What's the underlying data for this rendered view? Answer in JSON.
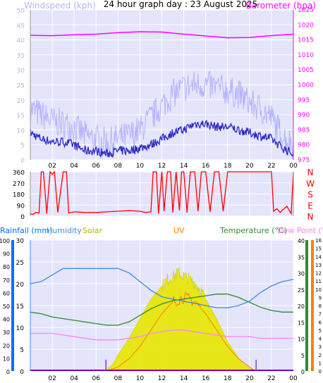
{
  "title": "24 hour graph day : 23 August 2025",
  "colors": {
    "panel_bg": "#e4e4fb",
    "grid": "#ffffff",
    "wind_gust": "#b4b4ff",
    "wind_avg": "#2828c8",
    "barometer": "#ff00ff",
    "direction": "#ff0000",
    "rainfall_axis": "#0070ff",
    "humidity": "#3c8ce6",
    "solar": "#e6e600",
    "uv": "#ff8000",
    "temperature": "#2e8b2e",
    "dewpoint": "#ff80ff",
    "ws_label": "#b4b4f0"
  },
  "chart_data": [
    {
      "type": "line",
      "name": "wind-barometer",
      "title": "24 hour graph day : 23 August 2025",
      "ylabel_left": "Windspeed (kph)",
      "ylabel_right": "Barometer (hpa)",
      "x_ticks": [
        "02",
        "04",
        "06",
        "08",
        "10",
        "12",
        "14",
        "16",
        "18",
        "20",
        "22",
        "00"
      ],
      "y_left_ticks": [
        "0",
        "5",
        "10",
        "15",
        "20",
        "25",
        "30",
        "35",
        "40",
        "45",
        "50"
      ],
      "y_left_range": [
        0,
        50
      ],
      "y_right_ticks": [
        "975",
        "980",
        "985",
        "990",
        "995",
        "1000",
        "1005",
        "1010",
        "1015",
        "1020",
        "1025"
      ],
      "y_right_range": [
        975,
        1025
      ],
      "grid": true,
      "series": [
        {
          "name": "Windspeed",
          "x": [
            0,
            1,
            2,
            3,
            4,
            5,
            6,
            7,
            8,
            9,
            10,
            11,
            12,
            13,
            14,
            15,
            16,
            17,
            18,
            19,
            20,
            21,
            22,
            23,
            24
          ],
          "y": [
            9,
            7,
            6,
            6,
            5,
            3,
            3,
            2,
            3,
            3,
            4,
            5,
            7,
            9,
            10,
            12,
            12,
            11,
            11,
            10,
            9,
            8,
            7,
            4,
            2
          ]
        },
        {
          "name": "Gust",
          "x": [
            0,
            1,
            2,
            3,
            4,
            5,
            6,
            7,
            8,
            9,
            10,
            11,
            12,
            13,
            14,
            15,
            16,
            17,
            18,
            19,
            20,
            21,
            22,
            23,
            24
          ],
          "y": [
            17,
            15,
            13,
            12,
            11,
            8,
            7,
            6,
            7,
            8,
            10,
            14,
            18,
            22,
            24,
            25,
            25,
            24,
            23,
            22,
            19,
            17,
            14,
            8,
            5
          ]
        },
        {
          "name": "Barometer",
          "x": [
            0,
            2,
            4,
            6,
            8,
            10,
            12,
            14,
            16,
            18,
            20,
            22,
            24
          ],
          "y": [
            1016.5,
            1016.4,
            1016.7,
            1016.9,
            1017.4,
            1017.7,
            1017.6,
            1016.9,
            1016.3,
            1015.7,
            1015.8,
            1016.4,
            1016.9
          ]
        }
      ]
    },
    {
      "type": "line",
      "name": "wind-direction",
      "y_ticks": [
        "0",
        "90",
        "180",
        "270",
        "360"
      ],
      "y_range": [
        0,
        360
      ],
      "y_right_ticks": [
        "N",
        "W",
        "S",
        "E",
        "N"
      ],
      "series": [
        {
          "name": "Direction",
          "x": [
            0,
            0.25,
            0.5,
            0.8,
            1.0,
            1.2,
            1.5,
            1.8,
            2.0,
            2.2,
            2.5,
            3.0,
            3.3,
            3.5,
            4,
            5,
            6,
            7,
            8,
            9,
            10,
            10.5,
            11,
            11.2,
            11.5,
            11.7,
            12,
            12.2,
            12.5,
            12.8,
            13,
            13.3,
            13.6,
            13.8,
            14,
            14.3,
            14.6,
            15,
            15.3,
            15.6,
            16,
            16.4,
            16.8,
            17.2,
            17.6,
            18,
            18.4,
            18.8,
            19.2,
            19.6,
            20,
            20.5,
            21,
            21.5,
            22,
            22.2,
            22.5,
            22.8,
            23,
            23.4,
            23.8,
            24
          ],
          "y": [
            20,
            15,
            30,
            25,
            360,
            360,
            20,
            360,
            340,
            360,
            30,
            360,
            360,
            25,
            35,
            30,
            30,
            35,
            40,
            45,
            40,
            30,
            35,
            360,
            360,
            20,
            360,
            40,
            360,
            360,
            30,
            360,
            45,
            360,
            360,
            30,
            360,
            360,
            40,
            360,
            360,
            35,
            360,
            360,
            40,
            360,
            360,
            360,
            360,
            360,
            360,
            360,
            360,
            360,
            360,
            40,
            60,
            30,
            50,
            80,
            20,
            360
          ]
        }
      ]
    },
    {
      "type": "line",
      "name": "weather-multi",
      "legend": [
        "Rainfall (mm)",
        "Humidity",
        "Solar",
        "UV",
        "Temperature (°C)",
        "Dew Point (°C)"
      ],
      "x_ticks": [
        "02",
        "04",
        "06",
        "08",
        "10",
        "12",
        "14",
        "16",
        "18",
        "20",
        "22",
        "00"
      ],
      "y_rain_ticks": [
        "0",
        "10",
        "20",
        "30",
        "40",
        "50",
        "60",
        "70",
        "80",
        "90",
        "100"
      ],
      "y_rain_range": [
        0,
        100
      ],
      "y_hum_ticks": [
        "0",
        "5",
        "10",
        "15",
        "20",
        "25",
        "30"
      ],
      "y_hum_range": [
        0,
        30
      ],
      "y_temp_ticks": [
        "0",
        "5",
        "10",
        "15",
        "20",
        "25",
        "30",
        "35",
        "40"
      ],
      "y_temp_range": [
        0,
        40
      ],
      "y_uv_ticks": [
        "0",
        "1",
        "2",
        "3",
        "4",
        "5",
        "6",
        "7",
        "8",
        "9",
        "10",
        "11",
        "12",
        "13",
        "14",
        "15",
        "16"
      ],
      "y_uv_range": [
        0,
        16
      ],
      "series": [
        {
          "name": "Rainfall",
          "x": [
            0,
            24
          ],
          "y": [
            0,
            0
          ]
        },
        {
          "name": "Humidity",
          "x": [
            0,
            1,
            2,
            3,
            4,
            5,
            6,
            7,
            8,
            9,
            10,
            11,
            12,
            13,
            14,
            15,
            16,
            17,
            18,
            19,
            20,
            21,
            22,
            23,
            24
          ],
          "y": [
            20,
            20.5,
            22,
            23.5,
            23.5,
            23.5,
            23.5,
            23.5,
            23.5,
            22.5,
            20.5,
            18.5,
            17,
            16.5,
            16,
            15.5,
            15,
            14.5,
            14.5,
            15,
            16,
            18,
            19.5,
            20.5,
            21
          ]
        },
        {
          "name": "Solar",
          "x": [
            6.8,
            7.5,
            8,
            9,
            10,
            11,
            12,
            12.5,
            13,
            13.5,
            14,
            14.5,
            15,
            15.5,
            16,
            17,
            18,
            19,
            19.5,
            20,
            20.5
          ],
          "y": [
            0,
            2,
            5,
            10,
            16,
            22,
            26,
            28,
            29,
            30,
            29,
            28,
            27,
            25,
            22,
            16,
            9,
            4,
            2,
            1,
            0
          ]
        },
        {
          "name": "UV",
          "x": [
            7,
            8,
            9,
            10,
            11,
            12,
            13,
            14,
            15,
            16,
            17,
            18,
            19,
            20,
            20.5
          ],
          "y": [
            0,
            0.5,
            1.5,
            3,
            5,
            7,
            8.5,
            9,
            8.5,
            7,
            5,
            3,
            1.5,
            0.5,
            0
          ]
        },
        {
          "name": "Temperature",
          "x": [
            0,
            1,
            2,
            3,
            4,
            5,
            6,
            7,
            8,
            9,
            10,
            11,
            12,
            13,
            14,
            15,
            16,
            17,
            18,
            19,
            20,
            21,
            22,
            23,
            24
          ],
          "y": [
            18,
            17.5,
            16.5,
            16,
            15.5,
            15,
            14.5,
            14,
            14,
            15,
            17,
            19,
            20.5,
            21.5,
            22,
            22.5,
            23,
            23.5,
            23.5,
            22.5,
            21,
            19.5,
            18.5,
            18,
            18
          ]
        },
        {
          "name": "Dew Point",
          "x": [
            0,
            1,
            2,
            3,
            4,
            5,
            6,
            7,
            8,
            9,
            10,
            11,
            12,
            13,
            14,
            15,
            16,
            17,
            18,
            19,
            20,
            21,
            22,
            23,
            24
          ],
          "y": [
            11.5,
            11.5,
            11.5,
            11,
            10.5,
            10,
            9.5,
            9.5,
            9.5,
            10,
            10.5,
            11.5,
            12,
            12.5,
            12.5,
            12,
            11.5,
            11,
            10.5,
            10.5,
            10.5,
            10,
            10,
            10,
            10
          ]
        }
      ]
    }
  ]
}
